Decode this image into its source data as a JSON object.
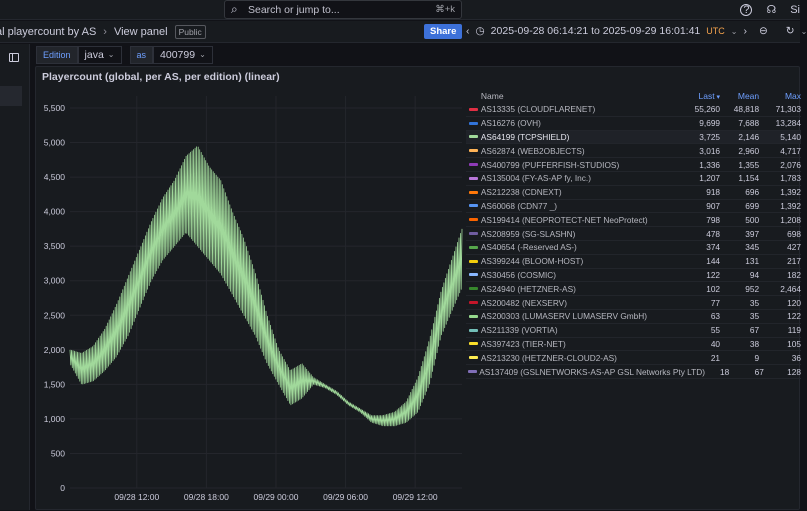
{
  "topbar": {
    "search_placeholder": "Search or jump to...",
    "search_shortcut": "⌘+k",
    "right_text": "Si"
  },
  "breadcrumb": {
    "dashboard": "al playercount by AS",
    "separator": "›",
    "current": "View panel",
    "badge": "Public"
  },
  "share_label": "Share",
  "time_range": {
    "text": "2025-09-28 06:14:21 to 2025-09-29 16:01:41",
    "tz": "UTC"
  },
  "variables": [
    {
      "label": "Edition",
      "value": "java"
    },
    {
      "label": "as",
      "value": "400799"
    }
  ],
  "panel": {
    "title": "Playercount (global, per AS, per edition) (linear)"
  },
  "chart_data": {
    "type": "line",
    "title": "Playercount (global, per AS, per edition) (linear)",
    "y_ticks": [
      "5,500",
      "5,000",
      "4,500",
      "4,000",
      "3,500",
      "3,000",
      "2,500",
      "2,000",
      "1,500",
      "1,000",
      "500",
      "0"
    ],
    "x_ticks": [
      "09/28 12:00",
      "09/28 18:00",
      "09/29 00:00",
      "09/29 06:00",
      "09/29 12:00"
    ],
    "ylim": [
      0,
      5500
    ],
    "grid": true,
    "series": [
      {
        "name": "AS64199 (TCPSHIELD)",
        "color": "#a1d99b",
        "x_hours": [
          0.0,
          1,
          2,
          3,
          4,
          5,
          6,
          7,
          8,
          9,
          10,
          11,
          12,
          13,
          14,
          15,
          16,
          17,
          18,
          19,
          20,
          21,
          22,
          23,
          24,
          25,
          26,
          27,
          28,
          29,
          30,
          31,
          32,
          33.8
        ],
        "low": [
          1800,
          1500,
          1550,
          1700,
          1900,
          2200,
          2600,
          3000,
          3300,
          3500,
          3700,
          3500,
          3300,
          3100,
          2800,
          2500,
          2200,
          1800,
          1500,
          1200,
          1300,
          1500,
          1450,
          1350,
          1200,
          1100,
          950,
          900,
          900,
          950,
          1100,
          1500,
          2200,
          2900
        ],
        "high": [
          2000,
          1950,
          2050,
          2300,
          2650,
          3050,
          3450,
          3850,
          4200,
          4450,
          4800,
          4950,
          4650,
          4450,
          4000,
          3600,
          3100,
          2500,
          2000,
          1700,
          1800,
          1600,
          1500,
          1400,
          1250,
          1150,
          1050,
          1050,
          1100,
          1250,
          1600,
          2150,
          2850,
          3750
        ]
      }
    ]
  },
  "legend": {
    "columns": {
      "name": "Name",
      "last": "Last",
      "mean": "Mean",
      "max": "Max"
    },
    "rows": [
      {
        "name": "AS13335 (CLOUDFLARENET)",
        "color": "#e02f44",
        "last": "55,260",
        "mean": "48,818",
        "max": "71,303"
      },
      {
        "name": "AS16276 (OVH)",
        "color": "#3274d9",
        "last": "9,699",
        "mean": "7,688",
        "max": "13,284"
      },
      {
        "name": "AS64199 (TCPSHIELD)",
        "color": "#a1d99b",
        "last": "3,725",
        "mean": "2,146",
        "max": "5,140",
        "highlight": true
      },
      {
        "name": "AS62874 (WEB2OBJECTS)",
        "color": "#ffb357",
        "last": "3,016",
        "mean": "2,960",
        "max": "4,717"
      },
      {
        "name": "AS400799 (PUFFERFISH-STUDIOS)",
        "color": "#8f3bb8",
        "last": "1,336",
        "mean": "1,355",
        "max": "2,076"
      },
      {
        "name": "AS135004 (FY-AS-AP fy, Inc.)",
        "color": "#b877d9",
        "last": "1,207",
        "mean": "1,154",
        "max": "1,783"
      },
      {
        "name": "AS212238 (CDNEXT)",
        "color": "#ff780a",
        "last": "918",
        "mean": "696",
        "max": "1,392"
      },
      {
        "name": "AS60068 (CDN77 _)",
        "color": "#5794f2",
        "last": "907",
        "mean": "699",
        "max": "1,392"
      },
      {
        "name": "AS199414 (NEOPROTECT-NET NeoProtect)",
        "color": "#fa6400",
        "last": "798",
        "mean": "500",
        "max": "1,208"
      },
      {
        "name": "AS208959 (SG-SLASHN)",
        "color": "#705da0",
        "last": "478",
        "mean": "397",
        "max": "698"
      },
      {
        "name": "AS40654 (-Reserved AS-)",
        "color": "#56a64b",
        "last": "374",
        "mean": "345",
        "max": "427"
      },
      {
        "name": "AS399244 (BLOOM-HOST)",
        "color": "#f2cc0c",
        "last": "144",
        "mean": "131",
        "max": "217"
      },
      {
        "name": "AS30456 (COSMIC)",
        "color": "#8ab8ff",
        "last": "122",
        "mean": "94",
        "max": "182"
      },
      {
        "name": "AS24940 (HETZNER-AS)",
        "color": "#37872d",
        "last": "102",
        "mean": "952",
        "max": "2,464"
      },
      {
        "name": "AS200482 (NEXSERV)",
        "color": "#c4162a",
        "last": "77",
        "mean": "35",
        "max": "120"
      },
      {
        "name": "AS200303 (LUMASERV LUMASERV GmbH)",
        "color": "#96d98d",
        "last": "63",
        "mean": "35",
        "max": "122"
      },
      {
        "name": "AS211339 (VORTIA)",
        "color": "#73bfb8",
        "last": "55",
        "mean": "67",
        "max": "119"
      },
      {
        "name": "AS397423 (TIER-NET)",
        "color": "#fade2a",
        "last": "40",
        "mean": "38",
        "max": "105"
      },
      {
        "name": "AS213230 (HETZNER-CLOUD2-AS)",
        "color": "#ffee52",
        "last": "21",
        "mean": "9",
        "max": "36"
      },
      {
        "name": "AS137409 (GSLNETWORKS-AS-AP GSL Networks Pty LTD)",
        "color": "#806eb7",
        "last": "18",
        "mean": "67",
        "max": "128"
      }
    ]
  }
}
